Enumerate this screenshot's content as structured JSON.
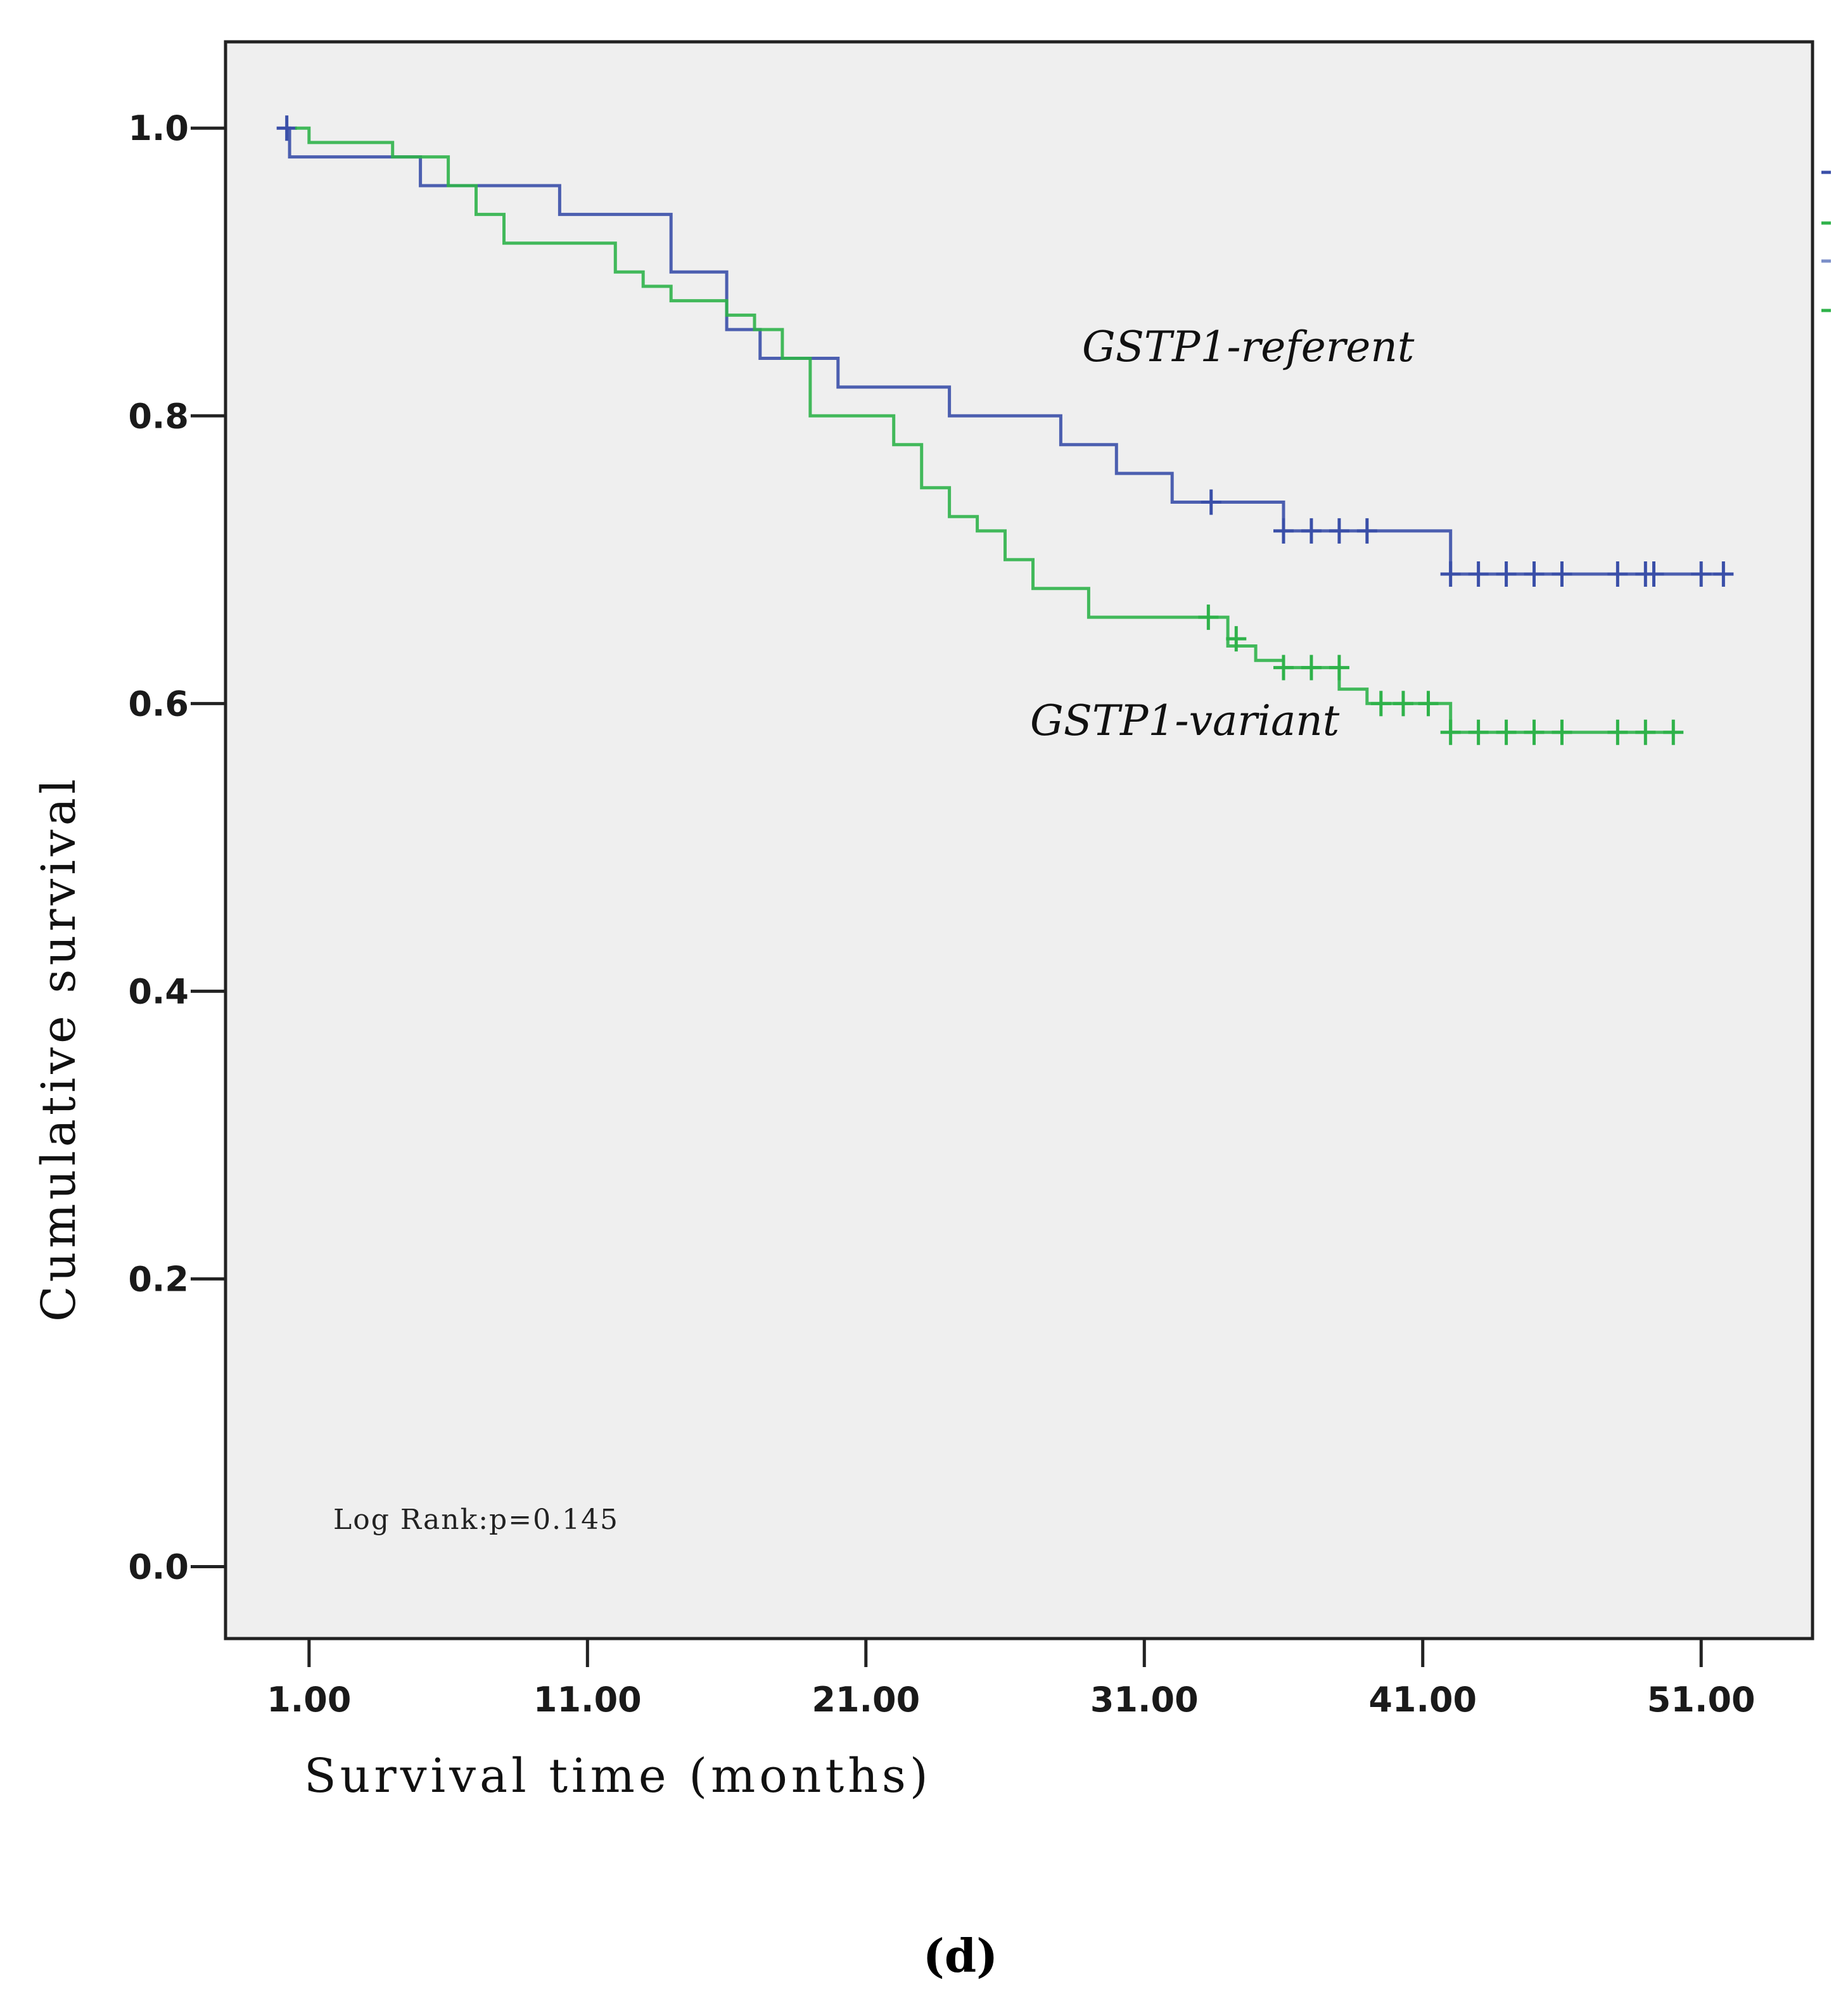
{
  "chart_data": {
    "type": "line",
    "subtype": "kaplan-meier",
    "title": "",
    "xlabel": "Survival time (months)",
    "ylabel": "Cumulative survival",
    "xlim": [
      -2,
      55
    ],
    "ylim": [
      -0.05,
      1.06
    ],
    "xticks": [
      1,
      11,
      21,
      31,
      41,
      51
    ],
    "xtick_labels": [
      "1.00",
      "11.00",
      "21.00",
      "31.00",
      "41.00",
      "51.00"
    ],
    "yticks": [
      0,
      0.2,
      0.4,
      0.6,
      0.8,
      1.0
    ],
    "ytick_labels": [
      "0.0",
      "0.2",
      "0.4",
      "0.6",
      "0.8",
      "1.0"
    ],
    "grid": false,
    "series": [
      {
        "name": "GSTP1-referent",
        "color": "#3a4fa8",
        "steps": [
          [
            0.2,
            1.0
          ],
          [
            0.3,
            0.98
          ],
          [
            5.0,
            0.96
          ],
          [
            10.0,
            0.94
          ],
          [
            14.0,
            0.9
          ],
          [
            16.0,
            0.86
          ],
          [
            17.2,
            0.84
          ],
          [
            20.0,
            0.82
          ],
          [
            24.0,
            0.8
          ],
          [
            28.0,
            0.78
          ],
          [
            30.0,
            0.76
          ],
          [
            32.0,
            0.74
          ],
          [
            36.0,
            0.72
          ],
          [
            42.0,
            0.69
          ],
          [
            51.5,
            0.69
          ]
        ],
        "censored": [
          [
            0.2,
            1.0
          ],
          [
            33.4,
            0.74
          ],
          [
            36.0,
            0.72
          ],
          [
            37.0,
            0.72
          ],
          [
            38.0,
            0.72
          ],
          [
            39.0,
            0.72
          ],
          [
            42.0,
            0.69
          ],
          [
            43.0,
            0.69
          ],
          [
            44.0,
            0.69
          ],
          [
            45.0,
            0.69
          ],
          [
            46.0,
            0.69
          ],
          [
            48.0,
            0.69
          ],
          [
            49.0,
            0.69
          ],
          [
            49.3,
            0.69
          ],
          [
            51.0,
            0.69
          ],
          [
            51.8,
            0.69
          ]
        ]
      },
      {
        "name": "GSTP1-variant",
        "color": "#2fb24a",
        "steps": [
          [
            0.5,
            1.0
          ],
          [
            1.0,
            0.99
          ],
          [
            4.0,
            0.98
          ],
          [
            6.0,
            0.96
          ],
          [
            7.0,
            0.94
          ],
          [
            8.0,
            0.92
          ],
          [
            12.0,
            0.9
          ],
          [
            13.0,
            0.89
          ],
          [
            14.0,
            0.88
          ],
          [
            16.0,
            0.87
          ],
          [
            17.0,
            0.86
          ],
          [
            18.0,
            0.84
          ],
          [
            19.0,
            0.8
          ],
          [
            22.0,
            0.78
          ],
          [
            23.0,
            0.75
          ],
          [
            24.0,
            0.73
          ],
          [
            25.0,
            0.72
          ],
          [
            26.0,
            0.7
          ],
          [
            27.0,
            0.68
          ],
          [
            29.0,
            0.66
          ],
          [
            34.0,
            0.64
          ],
          [
            35.0,
            0.63
          ],
          [
            36.0,
            0.625
          ],
          [
            38.0,
            0.61
          ],
          [
            39.0,
            0.6
          ],
          [
            42.0,
            0.58
          ],
          [
            50.0,
            0.58
          ]
        ],
        "censored": [
          [
            33.3,
            0.66
          ],
          [
            34.3,
            0.645
          ],
          [
            36.0,
            0.625
          ],
          [
            37.0,
            0.625
          ],
          [
            38.0,
            0.625
          ],
          [
            39.5,
            0.6
          ],
          [
            40.3,
            0.6
          ],
          [
            41.2,
            0.6
          ],
          [
            42.0,
            0.58
          ],
          [
            43.0,
            0.58
          ],
          [
            44.0,
            0.58
          ],
          [
            45.0,
            0.58
          ],
          [
            46.0,
            0.58
          ],
          [
            48.0,
            0.58
          ],
          [
            49.0,
            0.58
          ],
          [
            50.0,
            0.58
          ]
        ]
      }
    ],
    "annotations": [
      {
        "text": "GSTP1-referent",
        "x": 28.2,
        "y": 0.83
      },
      {
        "text": "GSTP1-variant",
        "x": 26.3,
        "y": 0.57
      },
      {
        "text": "Log Rank:p=0.145",
        "x": 2.0,
        "y": 0.025
      }
    ]
  },
  "labels": {
    "ylabel": "Cumulative survival",
    "xlabel": "Survival time (months)",
    "referent": "GSTP1-referent",
    "variant": "GSTP1-variant",
    "stat": "Log Rank:p=0.145",
    "panel": "(d)"
  }
}
